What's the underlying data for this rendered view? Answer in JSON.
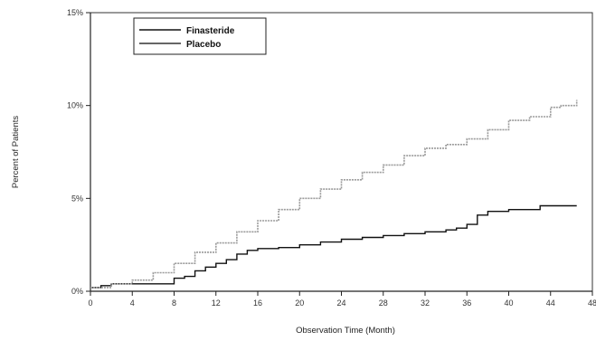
{
  "chart_data": {
    "type": "line",
    "title": "",
    "xlabel": "Observation Time (Month)",
    "ylabel": "Percent of Patients",
    "xlim": [
      0,
      48
    ],
    "ylim": [
      0,
      15
    ],
    "xticks": [
      0,
      4,
      8,
      12,
      16,
      20,
      24,
      28,
      32,
      36,
      40,
      44,
      48
    ],
    "xtick_labels": [
      "0",
      "4",
      "8",
      "12",
      "16",
      "20",
      "24",
      "28",
      "32",
      "36",
      "40",
      "44",
      "48"
    ],
    "yticks": [
      0,
      5,
      10,
      15
    ],
    "ytick_labels": [
      "0%",
      "5%",
      "10%",
      "15%"
    ],
    "grid": false,
    "legend_position": "top-left",
    "series": [
      {
        "name": "Finasteride",
        "color": "#111111",
        "style": "step",
        "points": [
          [
            0,
            0.2
          ],
          [
            1,
            0.3
          ],
          [
            2,
            0.4
          ],
          [
            4,
            0.4
          ],
          [
            6,
            0.4
          ],
          [
            7.5,
            0.4
          ],
          [
            8,
            0.7
          ],
          [
            9,
            0.8
          ],
          [
            10,
            1.1
          ],
          [
            11,
            1.3
          ],
          [
            12,
            1.5
          ],
          [
            13,
            1.7
          ],
          [
            14,
            2.0
          ],
          [
            15,
            2.2
          ],
          [
            16,
            2.3
          ],
          [
            18,
            2.35
          ],
          [
            20,
            2.5
          ],
          [
            22,
            2.65
          ],
          [
            24,
            2.8
          ],
          [
            26,
            2.9
          ],
          [
            28,
            3.0
          ],
          [
            30,
            3.1
          ],
          [
            32,
            3.2
          ],
          [
            34,
            3.3
          ],
          [
            35,
            3.4
          ],
          [
            36,
            3.6
          ],
          [
            37,
            4.1
          ],
          [
            38,
            4.3
          ],
          [
            40,
            4.4
          ],
          [
            42,
            4.4
          ],
          [
            43,
            4.6
          ],
          [
            46.5,
            4.6
          ]
        ]
      },
      {
        "name": "Placebo",
        "color": "#9a9a9a",
        "style": "step",
        "points": [
          [
            0,
            0.2
          ],
          [
            2,
            0.4
          ],
          [
            4,
            0.6
          ],
          [
            6,
            1.0
          ],
          [
            8,
            1.5
          ],
          [
            10,
            2.1
          ],
          [
            12,
            2.6
          ],
          [
            14,
            3.2
          ],
          [
            16,
            3.8
          ],
          [
            18,
            4.4
          ],
          [
            20,
            5.0
          ],
          [
            22,
            5.5
          ],
          [
            24,
            6.0
          ],
          [
            26,
            6.4
          ],
          [
            28,
            6.8
          ],
          [
            30,
            7.3
          ],
          [
            32,
            7.7
          ],
          [
            34,
            7.9
          ],
          [
            36,
            8.2
          ],
          [
            38,
            8.7
          ],
          [
            40,
            9.2
          ],
          [
            42,
            9.4
          ],
          [
            44,
            9.9
          ],
          [
            45,
            10.0
          ],
          [
            46,
            10.0
          ],
          [
            46.5,
            10.3
          ]
        ]
      }
    ]
  }
}
